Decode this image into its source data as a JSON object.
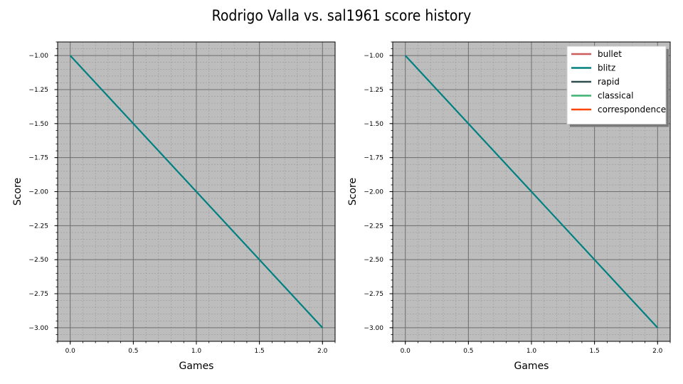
{
  "title": "Rodrigo Valla vs. sal1961 score history",
  "colors": {
    "plot_background": "#bdbdbd",
    "major_grid": "#6e6e6e",
    "minor_grid": "#9a9a9a"
  },
  "chart_data": [
    {
      "type": "line",
      "xlabel": "Games",
      "ylabel": "Score",
      "xlim": [
        -0.1,
        2.1
      ],
      "ylim": [
        -3.1,
        -0.9
      ],
      "xticks": [
        0.0,
        0.5,
        1.0,
        1.5,
        2.0
      ],
      "xtick_labels": [
        "0.0",
        "0.5",
        "1.0",
        "1.5",
        "2.0"
      ],
      "yticks": [
        -1.0,
        -1.25,
        -1.5,
        -1.75,
        -2.0,
        -2.25,
        -2.5,
        -2.75,
        -3.0
      ],
      "ytick_labels": [
        "−1.00",
        "−1.25",
        "−1.50",
        "−1.75",
        "−2.00",
        "−2.25",
        "−2.50",
        "−2.75",
        "−3.00"
      ],
      "grid": true,
      "legend": null,
      "series": [
        {
          "name": "blitz",
          "color": "#008080",
          "x": [
            0,
            1,
            2
          ],
          "y": [
            -1,
            -2,
            -3
          ]
        }
      ]
    },
    {
      "type": "line",
      "xlabel": "Games",
      "ylabel": "Score",
      "xlim": [
        -0.1,
        2.1
      ],
      "ylim": [
        -3.1,
        -0.9
      ],
      "xticks": [
        0.0,
        0.5,
        1.0,
        1.5,
        2.0
      ],
      "xtick_labels": [
        "0.0",
        "0.5",
        "1.0",
        "1.5",
        "2.0"
      ],
      "yticks": [
        -1.0,
        -1.25,
        -1.5,
        -1.75,
        -2.0,
        -2.25,
        -2.5,
        -2.75,
        -3.0
      ],
      "ytick_labels": [
        "−1.00",
        "−1.25",
        "−1.50",
        "−1.75",
        "−2.00",
        "−2.25",
        "−2.50",
        "−2.75",
        "−3.00"
      ],
      "grid": true,
      "legend": {
        "location": "top-right",
        "entries": [
          {
            "label": "bullet",
            "color": "#cd5c5c"
          },
          {
            "label": "blitz",
            "color": "#008080"
          },
          {
            "label": "rapid",
            "color": "#2f4f4f"
          },
          {
            "label": "classical",
            "color": "#3cb371"
          },
          {
            "label": "correspondence",
            "color": "#ff4500"
          }
        ]
      },
      "series": [
        {
          "name": "blitz",
          "color": "#008080",
          "x": [
            0,
            1,
            2
          ],
          "y": [
            -1,
            -2,
            -3
          ]
        }
      ]
    }
  ]
}
